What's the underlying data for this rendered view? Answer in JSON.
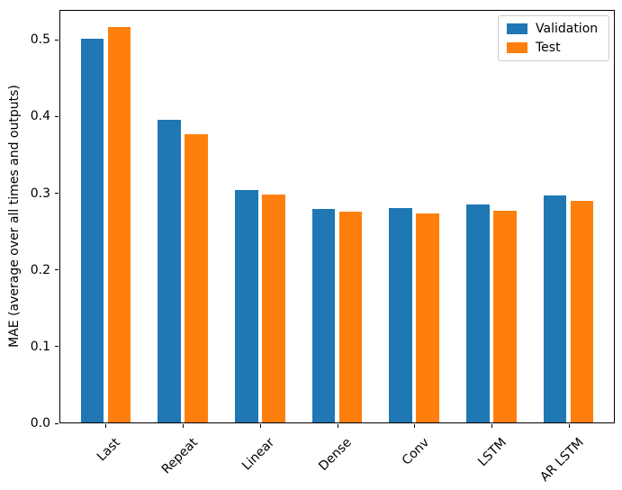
{
  "chart_data": {
    "type": "bar",
    "title": "",
    "ylabel": "MAE (average over all times and outputs)",
    "xlabel": "",
    "categories": [
      "Last",
      "Repeat",
      "Linear",
      "Dense",
      "Conv",
      "LSTM",
      "AR LSTM"
    ],
    "series": [
      {
        "name": "Validation",
        "color": "#1f77b4",
        "values": [
          0.5,
          0.394,
          0.303,
          0.278,
          0.279,
          0.284,
          0.296
        ]
      },
      {
        "name": "Test",
        "color": "#ff7f0e",
        "values": [
          0.515,
          0.376,
          0.297,
          0.275,
          0.272,
          0.276,
          0.289
        ]
      }
    ],
    "ytick_labels": [
      "0.0",
      "0.1",
      "0.2",
      "0.3",
      "0.4",
      "0.5"
    ],
    "ylim": [
      0,
      0.539
    ],
    "xtick_rotation_deg": 45,
    "grid": false,
    "legend_position": "upper right",
    "bar_width_units": 0.3,
    "group_offset_units": 0.175
  }
}
